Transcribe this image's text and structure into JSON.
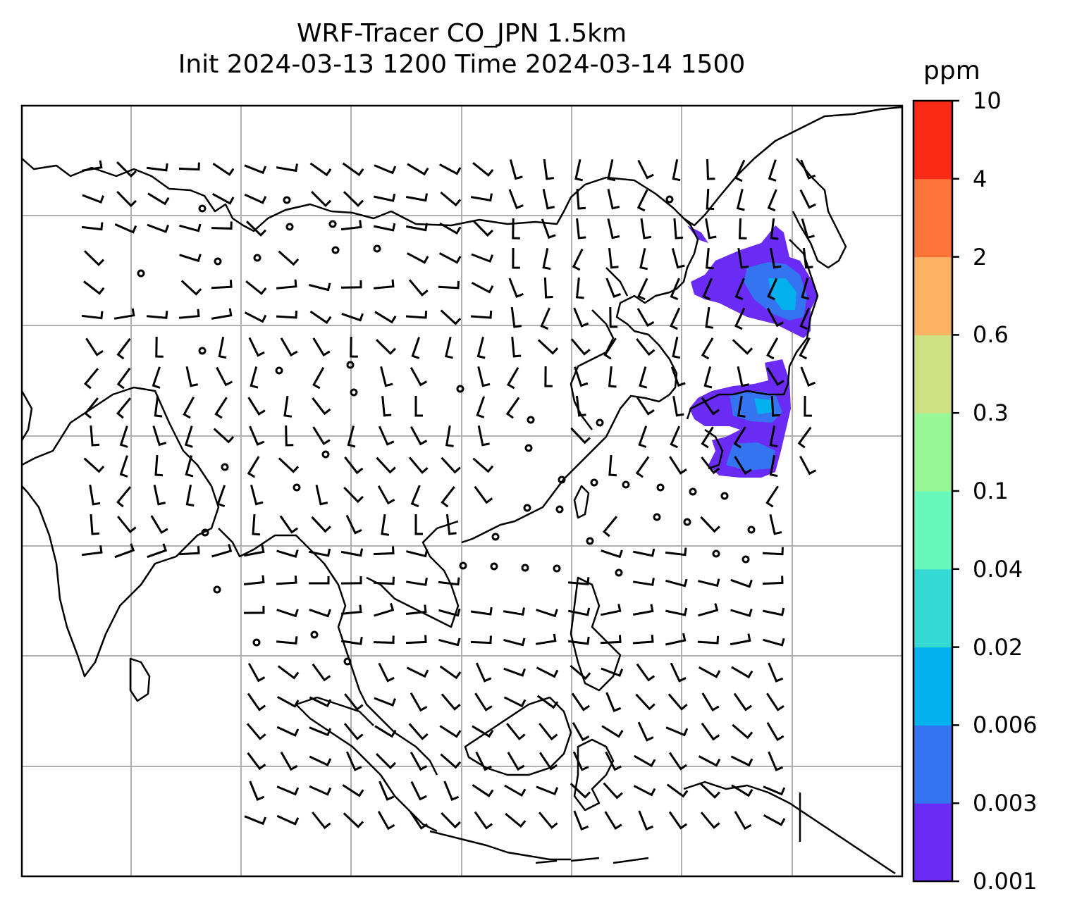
{
  "title": {
    "line1": "WRF-Tracer CO_JPN 1.5km",
    "line2": "Init 2024-03-13 1200 Time 2024-03-14 1500"
  },
  "colorbar": {
    "unit": "ppm",
    "levels": [
      "0.001",
      "0.003",
      "0.006",
      "0.02",
      "0.04",
      "0.1",
      "0.3",
      "0.6",
      "2",
      "4",
      "10"
    ],
    "colors": [
      "#6a2cf5",
      "#3474f0",
      "#01b1ee",
      "#33d9d2",
      "#68f8bc",
      "#99f696",
      "#cde183",
      "#fbb264",
      "#fd7539",
      "#fb2a17"
    ]
  },
  "colors": {
    "coastline": "#000000",
    "grid": "#b0b0b0",
    "plume_main": "#6a2cf5",
    "plume_mid": "#3474f0",
    "plume_high": "#01b1ee"
  }
}
